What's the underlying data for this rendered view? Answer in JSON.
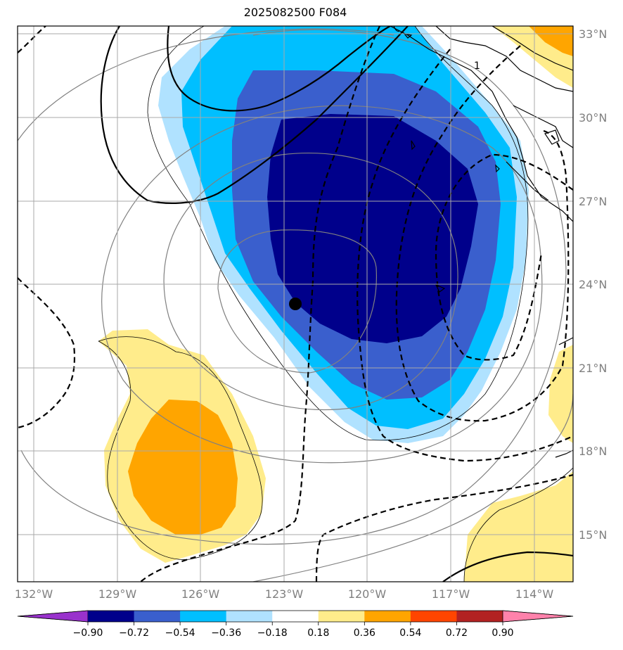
{
  "title": "2025082500 F084",
  "map": {
    "lat_labels": [
      "33°N",
      "30°N",
      "27°N",
      "24°N",
      "21°N",
      "18°N",
      "15°N"
    ],
    "lon_labels": [
      "132°W",
      "129°W",
      "126°W",
      "123°W",
      "120°W",
      "117°W",
      "114°W"
    ],
    "contour_label": "1",
    "colors": {
      "neg_090": "#9932cc",
      "neg_072": "#00008b",
      "neg_054": "#3a5fcd",
      "neg_036": "#00bfff",
      "neg_018": "#b0e2ff",
      "zero": "#ffffff",
      "pos_018": "#ffec8b",
      "pos_036": "#ffa500",
      "pos_054": "#ff4500",
      "pos_072": "#b22222",
      "pos_090": "#ff82ab"
    },
    "center_marker": "black-dot"
  },
  "colorbar": {
    "ticks": [
      "−0.90",
      "−0.72",
      "−0.54",
      "−0.36",
      "−0.18",
      "0.18",
      "0.36",
      "0.54",
      "0.72",
      "0.90"
    ],
    "colors": [
      "#9932cc",
      "#00008b",
      "#3a5fcd",
      "#00bfff",
      "#b0e2ff",
      "#ffffff",
      "#ffec8b",
      "#ffa500",
      "#ff4500",
      "#b22222",
      "#ff82ab"
    ]
  }
}
